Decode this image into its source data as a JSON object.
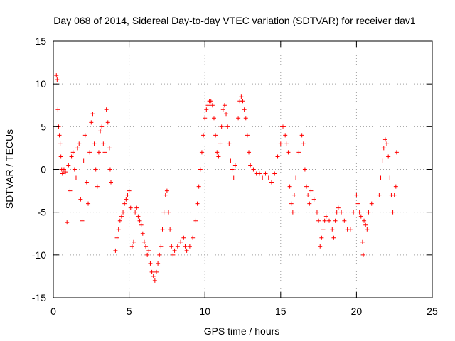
{
  "chart_data": {
    "type": "scatter",
    "title": "Day 068 of 2014, Sidereal Day-to-day VTEC variation (SDTVAR) for receiver dav1",
    "xlabel": "GPS time / hours",
    "ylabel": "SDTVAR / TECUs",
    "xlim": [
      0,
      25
    ],
    "ylim": [
      -15,
      15
    ],
    "xticks": [
      0,
      5,
      10,
      15,
      20,
      25
    ],
    "yticks": [
      -15,
      -10,
      -5,
      0,
      5,
      10,
      15
    ],
    "xtick_labels": [
      "0",
      "5",
      "10",
      "15",
      "20",
      "25"
    ],
    "ytick_labels": [
      "-15",
      "-10",
      "-5",
      "0",
      "5",
      "10",
      "15"
    ],
    "grid": true,
    "marker": "+",
    "color": "#ff0000",
    "series": [
      {
        "name": "SDTVAR",
        "points": [
          [
            0.2,
            11
          ],
          [
            0.25,
            10.5
          ],
          [
            0.3,
            10.8
          ],
          [
            0.3,
            7
          ],
          [
            0.35,
            5
          ],
          [
            0.4,
            4
          ],
          [
            0.45,
            3
          ],
          [
            0.5,
            1.5
          ],
          [
            0.55,
            0
          ],
          [
            0.6,
            -0.5
          ],
          [
            0.7,
            0
          ],
          [
            0.8,
            -0.3
          ],
          [
            0.9,
            -6.2
          ],
          [
            1.0,
            0.5
          ],
          [
            1.1,
            -2.5
          ],
          [
            1.2,
            1.5
          ],
          [
            1.3,
            2
          ],
          [
            1.4,
            0
          ],
          [
            1.5,
            -1
          ],
          [
            1.6,
            2.5
          ],
          [
            1.7,
            3
          ],
          [
            1.8,
            -3.5
          ],
          [
            1.9,
            -6
          ],
          [
            2.0,
            1
          ],
          [
            2.1,
            4
          ],
          [
            2.2,
            -1.5
          ],
          [
            2.3,
            -4
          ],
          [
            2.4,
            2
          ],
          [
            2.5,
            5.5
          ],
          [
            2.6,
            6.5
          ],
          [
            2.7,
            3
          ],
          [
            2.8,
            0
          ],
          [
            2.9,
            -2
          ],
          [
            3.0,
            2
          ],
          [
            3.1,
            4.5
          ],
          [
            3.2,
            5
          ],
          [
            3.3,
            3
          ],
          [
            3.4,
            2
          ],
          [
            3.5,
            7
          ],
          [
            3.6,
            5.5
          ],
          [
            3.7,
            2.5
          ],
          [
            3.75,
            0
          ],
          [
            3.8,
            -1.5
          ],
          [
            4.1,
            -9.5
          ],
          [
            4.2,
            -8
          ],
          [
            4.3,
            -7
          ],
          [
            4.4,
            -6
          ],
          [
            4.5,
            -5.5
          ],
          [
            4.6,
            -5
          ],
          [
            4.7,
            -4
          ],
          [
            4.8,
            -3.5
          ],
          [
            4.9,
            -3
          ],
          [
            5.0,
            -2.5
          ],
          [
            5.1,
            -4.5
          ],
          [
            5.2,
            -9
          ],
          [
            5.3,
            -8.5
          ],
          [
            5.4,
            -5
          ],
          [
            5.5,
            -4.5
          ],
          [
            5.6,
            -5.5
          ],
          [
            5.7,
            -6
          ],
          [
            5.8,
            -6.5
          ],
          [
            5.9,
            -7.5
          ],
          [
            6.0,
            -8.5
          ],
          [
            6.1,
            -9
          ],
          [
            6.2,
            -10
          ],
          [
            6.3,
            -9.5
          ],
          [
            6.4,
            -11
          ],
          [
            6.5,
            -12
          ],
          [
            6.6,
            -12.5
          ],
          [
            6.7,
            -13
          ],
          [
            6.8,
            -12
          ],
          [
            6.9,
            -11
          ],
          [
            7.0,
            -10
          ],
          [
            7.1,
            -9
          ],
          [
            7.2,
            -7
          ],
          [
            7.3,
            -5
          ],
          [
            7.4,
            -3
          ],
          [
            7.5,
            -2.5
          ],
          [
            7.6,
            -5
          ],
          [
            7.7,
            -7
          ],
          [
            7.8,
            -9
          ],
          [
            7.9,
            -10
          ],
          [
            8.0,
            -9.5
          ],
          [
            8.2,
            -9
          ],
          [
            8.4,
            -8.5
          ],
          [
            8.6,
            -8
          ],
          [
            8.7,
            -9
          ],
          [
            8.8,
            -9.5
          ],
          [
            9.0,
            -9
          ],
          [
            9.2,
            -8
          ],
          [
            9.4,
            -6
          ],
          [
            9.5,
            -4
          ],
          [
            9.6,
            -2
          ],
          [
            9.7,
            0
          ],
          [
            9.8,
            2
          ],
          [
            9.9,
            4
          ],
          [
            10.0,
            6
          ],
          [
            10.1,
            7
          ],
          [
            10.2,
            7.5
          ],
          [
            10.3,
            8
          ],
          [
            10.4,
            8
          ],
          [
            10.5,
            7.5
          ],
          [
            10.6,
            6
          ],
          [
            10.7,
            4
          ],
          [
            10.8,
            2
          ],
          [
            10.9,
            1.5
          ],
          [
            11.0,
            3
          ],
          [
            11.1,
            5
          ],
          [
            11.2,
            7
          ],
          [
            11.3,
            7.5
          ],
          [
            11.4,
            6.5
          ],
          [
            11.5,
            5
          ],
          [
            11.6,
            3
          ],
          [
            11.7,
            1
          ],
          [
            11.8,
            0
          ],
          [
            11.9,
            -1
          ],
          [
            12.0,
            0.5
          ],
          [
            12.2,
            6
          ],
          [
            12.3,
            8
          ],
          [
            12.4,
            8.5
          ],
          [
            12.5,
            8
          ],
          [
            12.6,
            7
          ],
          [
            12.7,
            6
          ],
          [
            12.8,
            4
          ],
          [
            12.9,
            2
          ],
          [
            13.0,
            0.5
          ],
          [
            13.2,
            0
          ],
          [
            13.4,
            -0.5
          ],
          [
            13.6,
            -0.5
          ],
          [
            13.8,
            -1
          ],
          [
            14.0,
            -0.5
          ],
          [
            14.2,
            -1
          ],
          [
            14.4,
            -1.5
          ],
          [
            14.6,
            -0.5
          ],
          [
            14.8,
            1.5
          ],
          [
            15.0,
            3
          ],
          [
            15.1,
            5
          ],
          [
            15.2,
            5
          ],
          [
            15.3,
            4
          ],
          [
            15.4,
            3
          ],
          [
            15.5,
            2
          ],
          [
            15.6,
            -2
          ],
          [
            15.7,
            -4
          ],
          [
            15.8,
            -5
          ],
          [
            15.9,
            -3
          ],
          [
            16.0,
            -1
          ],
          [
            16.2,
            2
          ],
          [
            16.4,
            4
          ],
          [
            16.5,
            3
          ],
          [
            16.6,
            0
          ],
          [
            16.7,
            -2
          ],
          [
            16.8,
            -3
          ],
          [
            16.9,
            -4
          ],
          [
            17.0,
            -2.5
          ],
          [
            17.2,
            -3.5
          ],
          [
            17.4,
            -5
          ],
          [
            17.5,
            -6
          ],
          [
            17.6,
            -9
          ],
          [
            17.7,
            -8
          ],
          [
            17.8,
            -7
          ],
          [
            17.9,
            -6
          ],
          [
            18.0,
            -5.5
          ],
          [
            18.2,
            -6
          ],
          [
            18.4,
            -7
          ],
          [
            18.5,
            -8
          ],
          [
            18.6,
            -6
          ],
          [
            18.7,
            -5
          ],
          [
            18.8,
            -4.5
          ],
          [
            19.0,
            -5
          ],
          [
            19.2,
            -6
          ],
          [
            19.4,
            -7
          ],
          [
            19.6,
            -7
          ],
          [
            19.8,
            -5
          ],
          [
            20.0,
            -3
          ],
          [
            20.1,
            -4
          ],
          [
            20.2,
            -5
          ],
          [
            20.3,
            -5.5
          ],
          [
            20.4,
            -8.5
          ],
          [
            20.45,
            -10
          ],
          [
            20.5,
            -6
          ],
          [
            20.6,
            -6.5
          ],
          [
            20.7,
            -7
          ],
          [
            20.8,
            -5
          ],
          [
            21.0,
            -4
          ],
          [
            21.5,
            -3
          ],
          [
            21.6,
            -1
          ],
          [
            21.7,
            1
          ],
          [
            21.8,
            2.5
          ],
          [
            21.9,
            3.5
          ],
          [
            22.0,
            3
          ],
          [
            22.1,
            1.5
          ],
          [
            22.2,
            -1
          ],
          [
            22.3,
            -3
          ],
          [
            22.4,
            -5
          ],
          [
            22.5,
            -3
          ],
          [
            22.6,
            -2
          ],
          [
            22.65,
            2
          ]
        ]
      }
    ]
  }
}
